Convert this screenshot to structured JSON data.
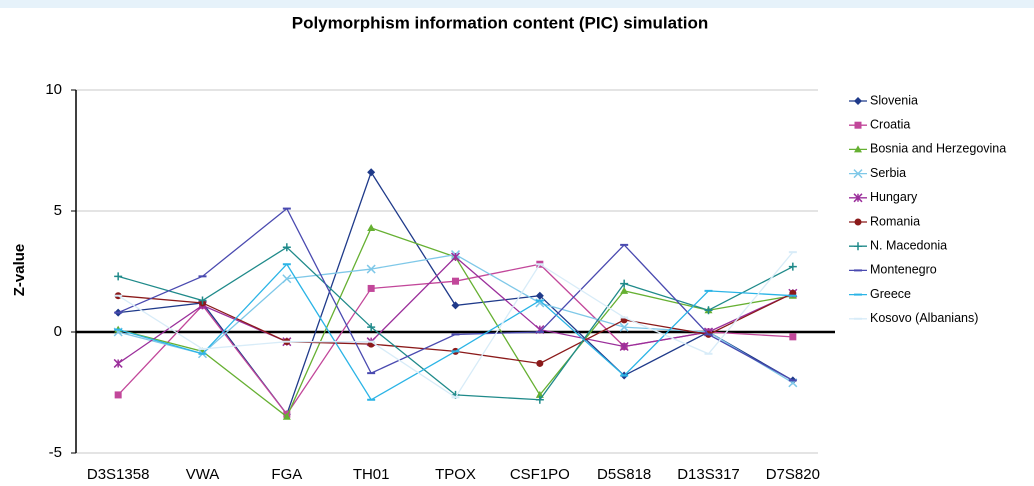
{
  "chart_data": {
    "type": "line",
    "title": "Polymorphism information content (PIC) simulation",
    "y_label": "Z-value",
    "categories": [
      "D3S1358",
      "VWA",
      "FGA",
      "TH01",
      "TPOX",
      "CSF1PO",
      "D5S818",
      "D13S317",
      "D7S820"
    ],
    "ylim": [
      -5,
      10
    ],
    "yticks": [
      -5,
      0,
      5,
      10
    ],
    "grid": true,
    "legend": "right",
    "series": [
      {
        "name": "Slovenia",
        "color": "#1f3a8a",
        "marker": "diamond",
        "values": [
          0.8,
          1.2,
          -3.4,
          6.6,
          1.1,
          1.5,
          -1.8,
          0.0,
          -2.0
        ]
      },
      {
        "name": "Croatia",
        "color": "#c2479a",
        "marker": "square",
        "values": [
          -2.6,
          1.1,
          -3.4,
          1.8,
          2.1,
          2.8,
          -0.6,
          0.0,
          -0.2
        ]
      },
      {
        "name": "Bosnia and Herzegovina",
        "color": "#66b032",
        "marker": "triangle",
        "values": [
          0.1,
          -0.8,
          -3.5,
          4.3,
          3.1,
          -2.6,
          1.7,
          0.9,
          1.5
        ]
      },
      {
        "name": "Serbia",
        "color": "#7fc8e8",
        "marker": "x",
        "values": [
          0.0,
          -0.9,
          2.2,
          2.6,
          3.2,
          1.2,
          0.2,
          0.0,
          -2.1
        ]
      },
      {
        "name": "Hungary",
        "color": "#9b2f9b",
        "marker": "star",
        "values": [
          -1.3,
          1.1,
          -0.4,
          -0.4,
          3.1,
          0.1,
          -0.6,
          0.0,
          1.6
        ]
      },
      {
        "name": "Romania",
        "color": "#8b1a1a",
        "marker": "circle",
        "values": [
          1.5,
          1.2,
          -0.4,
          -0.5,
          -0.8,
          -1.3,
          0.5,
          -0.1,
          1.6
        ]
      },
      {
        "name": "N. Macedonia",
        "color": "#1f8a8a",
        "marker": "plus",
        "values": [
          2.3,
          1.3,
          3.5,
          0.2,
          -2.6,
          -2.8,
          2.0,
          0.9,
          2.7
        ]
      },
      {
        "name": "Montenegro",
        "color": "#4a4ab0",
        "marker": "dash",
        "values": [
          0.8,
          2.3,
          5.1,
          -1.7,
          -0.1,
          0.0,
          3.6,
          -0.1,
          -2.0
        ]
      },
      {
        "name": "Greece",
        "color": "#2bb4e6",
        "marker": "dash",
        "values": [
          0.1,
          -0.9,
          2.8,
          -2.8,
          -0.8,
          1.3,
          -1.8,
          1.7,
          1.5
        ]
      },
      {
        "name": "Kosovo (Albanians)",
        "color": "#d8ecf8",
        "marker": "dash",
        "values": [
          1.5,
          -0.7,
          -0.4,
          -0.4,
          -2.7,
          2.8,
          0.6,
          -0.9,
          3.3
        ]
      }
    ]
  }
}
